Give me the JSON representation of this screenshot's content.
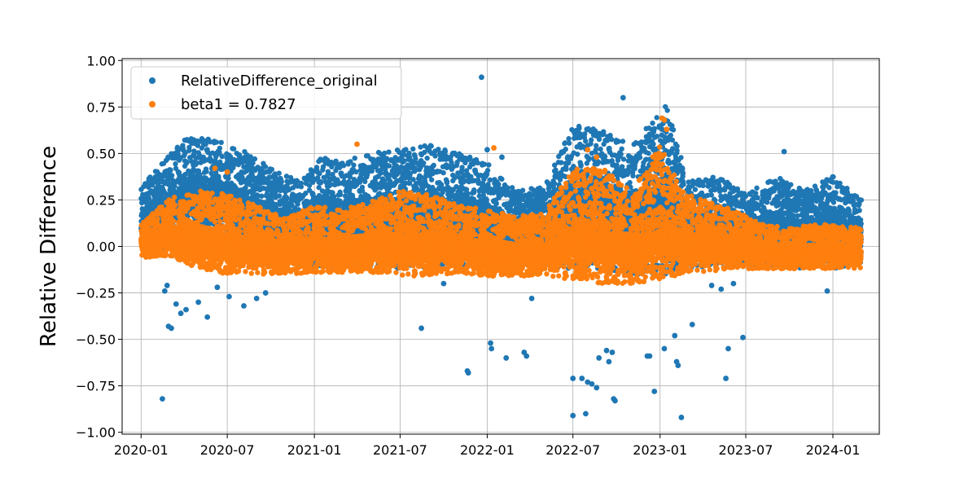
{
  "chart_data": {
    "type": "scatter",
    "title": "",
    "xlabel": "",
    "ylabel": "Relative Difference",
    "x_type": "date",
    "xlim": [
      "2019-11-22",
      "2024-04-08"
    ],
    "ylim": [
      -1.01,
      1.01
    ],
    "x_ticks": [
      "2020-01",
      "2020-07",
      "2021-01",
      "2021-07",
      "2022-01",
      "2022-07",
      "2023-01",
      "2023-07",
      "2024-01"
    ],
    "y_ticks": [
      1.0,
      0.75,
      0.5,
      0.25,
      0.0,
      -0.25,
      -0.5,
      -0.75,
      -1.0
    ],
    "y_tick_labels": [
      "1.00",
      "0.75",
      "0.50",
      "0.25",
      "0.00",
      "−0.25",
      "−0.50",
      "−0.75",
      "−1.00"
    ],
    "grid": true,
    "legend_position": "top-left",
    "date_range": [
      "2020-01-01",
      "2024-02-29"
    ],
    "series": [
      {
        "name": "RelativeDifference_original",
        "color": "#1f77b4",
        "band_profile": [
          [
            "2020-01-01",
            -0.05,
            0.32
          ],
          [
            "2020-02-15",
            -0.02,
            0.45
          ],
          [
            "2020-04-01",
            0.0,
            0.58
          ],
          [
            "2020-06-01",
            0.02,
            0.58
          ],
          [
            "2020-08-01",
            -0.02,
            0.52
          ],
          [
            "2020-10-01",
            -0.08,
            0.42
          ],
          [
            "2020-12-01",
            -0.1,
            0.35
          ],
          [
            "2021-01-15",
            -0.12,
            0.48
          ],
          [
            "2021-03-01",
            -0.1,
            0.45
          ],
          [
            "2021-04-15",
            -0.1,
            0.5
          ],
          [
            "2021-07-01",
            -0.12,
            0.52
          ],
          [
            "2021-09-01",
            -0.12,
            0.55
          ],
          [
            "2021-11-01",
            -0.1,
            0.5
          ],
          [
            "2022-01-01",
            -0.12,
            0.45
          ],
          [
            "2022-03-01",
            -0.1,
            0.3
          ],
          [
            "2022-05-01",
            -0.12,
            0.32
          ],
          [
            "2022-07-01",
            -0.12,
            0.66
          ],
          [
            "2022-09-01",
            -0.12,
            0.62
          ],
          [
            "2022-11-01",
            -0.15,
            0.55
          ],
          [
            "2023-01-15",
            -0.15,
            0.76
          ],
          [
            "2023-03-01",
            -0.12,
            0.35
          ],
          [
            "2023-05-01",
            -0.1,
            0.38
          ],
          [
            "2023-07-01",
            -0.1,
            0.28
          ],
          [
            "2023-09-01",
            -0.1,
            0.38
          ],
          [
            "2023-11-01",
            -0.12,
            0.3
          ],
          [
            "2024-01-01",
            -0.12,
            0.38
          ],
          [
            "2024-02-29",
            -0.1,
            0.25
          ]
        ],
        "outliers": [
          [
            "2020-02-15",
            -0.82
          ],
          [
            "2020-02-28",
            -0.43
          ],
          [
            "2020-03-05",
            -0.44
          ],
          [
            "2020-02-20",
            -0.24
          ],
          [
            "2020-02-25",
            -0.21
          ],
          [
            "2020-03-15",
            -0.31
          ],
          [
            "2020-03-25",
            -0.36
          ],
          [
            "2020-04-05",
            -0.34
          ],
          [
            "2020-05-01",
            -0.3
          ],
          [
            "2020-05-20",
            -0.38
          ],
          [
            "2020-06-10",
            -0.22
          ],
          [
            "2020-07-05",
            -0.27
          ],
          [
            "2020-08-05",
            -0.32
          ],
          [
            "2020-09-01",
            -0.28
          ],
          [
            "2020-09-20",
            -0.25
          ],
          [
            "2021-08-15",
            -0.44
          ],
          [
            "2021-10-01",
            -0.2
          ],
          [
            "2021-11-20",
            -0.67
          ],
          [
            "2021-11-22",
            -0.68
          ],
          [
            "2021-12-20",
            0.91
          ],
          [
            "2022-01-08",
            -0.52
          ],
          [
            "2022-01-10",
            -0.55
          ],
          [
            "2022-02-10",
            -0.6
          ],
          [
            "2022-03-20",
            -0.57
          ],
          [
            "2022-03-25",
            -0.59
          ],
          [
            "2022-04-05",
            -0.28
          ],
          [
            "2022-07-01",
            -0.91
          ],
          [
            "2022-07-01",
            -0.71
          ],
          [
            "2022-07-20",
            -0.71
          ],
          [
            "2022-07-28",
            -0.9
          ],
          [
            "2022-08-01",
            -0.73
          ],
          [
            "2022-08-10",
            -0.74
          ],
          [
            "2022-08-20",
            -0.76
          ],
          [
            "2022-08-25",
            -0.6
          ],
          [
            "2022-09-10",
            -0.56
          ],
          [
            "2022-09-15",
            -0.62
          ],
          [
            "2022-09-22",
            -0.57
          ],
          [
            "2022-09-25",
            -0.82
          ],
          [
            "2022-09-28",
            -0.83
          ],
          [
            "2022-10-15",
            0.8
          ],
          [
            "2022-12-20",
            -0.78
          ],
          [
            "2022-12-05",
            -0.59
          ],
          [
            "2022-12-10",
            -0.59
          ],
          [
            "2023-01-10",
            -0.55
          ],
          [
            "2023-02-05",
            -0.62
          ],
          [
            "2023-02-08",
            -0.64
          ],
          [
            "2023-02-01",
            -0.48
          ],
          [
            "2023-02-15",
            -0.92
          ],
          [
            "2023-03-10",
            -0.42
          ],
          [
            "2023-04-20",
            -0.21
          ],
          [
            "2023-05-10",
            -0.23
          ],
          [
            "2023-05-20",
            -0.71
          ],
          [
            "2023-05-25",
            -0.55
          ],
          [
            "2023-06-25",
            -0.49
          ],
          [
            "2023-06-05",
            -0.2
          ],
          [
            "2023-12-20",
            -0.24
          ],
          [
            "2023-09-20",
            0.51
          ],
          [
            "2022-01-01",
            0.52
          ],
          [
            "2022-02-01",
            0.48
          ]
        ]
      },
      {
        "name": "beta1 = 0.7827",
        "color": "#ff7f0e",
        "band_profile": [
          [
            "2020-01-01",
            -0.06,
            0.12
          ],
          [
            "2020-03-01",
            -0.05,
            0.26
          ],
          [
            "2020-05-01",
            -0.12,
            0.3
          ],
          [
            "2020-07-01",
            -0.15,
            0.28
          ],
          [
            "2020-09-01",
            -0.15,
            0.22
          ],
          [
            "2020-11-01",
            -0.15,
            0.15
          ],
          [
            "2021-01-01",
            -0.14,
            0.22
          ],
          [
            "2021-03-01",
            -0.14,
            0.2
          ],
          [
            "2021-05-01",
            -0.14,
            0.24
          ],
          [
            "2021-07-01",
            -0.16,
            0.3
          ],
          [
            "2021-09-01",
            -0.16,
            0.28
          ],
          [
            "2021-11-01",
            -0.14,
            0.22
          ],
          [
            "2022-01-01",
            -0.16,
            0.2
          ],
          [
            "2022-03-01",
            -0.16,
            0.16
          ],
          [
            "2022-05-01",
            -0.16,
            0.18
          ],
          [
            "2022-07-01",
            -0.18,
            0.42
          ],
          [
            "2022-09-01",
            -0.2,
            0.42
          ],
          [
            "2022-11-01",
            -0.2,
            0.3
          ],
          [
            "2023-01-01",
            -0.18,
            0.55
          ],
          [
            "2023-02-15",
            -0.15,
            0.3
          ],
          [
            "2023-04-01",
            -0.14,
            0.25
          ],
          [
            "2023-06-01",
            -0.12,
            0.2
          ],
          [
            "2023-08-01",
            -0.12,
            0.12
          ],
          [
            "2023-10-01",
            -0.12,
            0.1
          ],
          [
            "2023-12-01",
            -0.12,
            0.12
          ],
          [
            "2024-02-29",
            -0.12,
            0.1
          ]
        ],
        "outliers": [
          [
            "2023-01-05",
            0.69
          ],
          [
            "2023-01-10",
            0.68
          ],
          [
            "2023-01-15",
            0.63
          ],
          [
            "2022-08-01",
            0.52
          ],
          [
            "2021-04-01",
            0.55
          ],
          [
            "2022-01-15",
            0.53
          ],
          [
            "2020-06-05",
            0.42
          ],
          [
            "2020-07-01",
            0.4
          ],
          [
            "2022-08-20",
            0.48
          ]
        ]
      }
    ]
  }
}
